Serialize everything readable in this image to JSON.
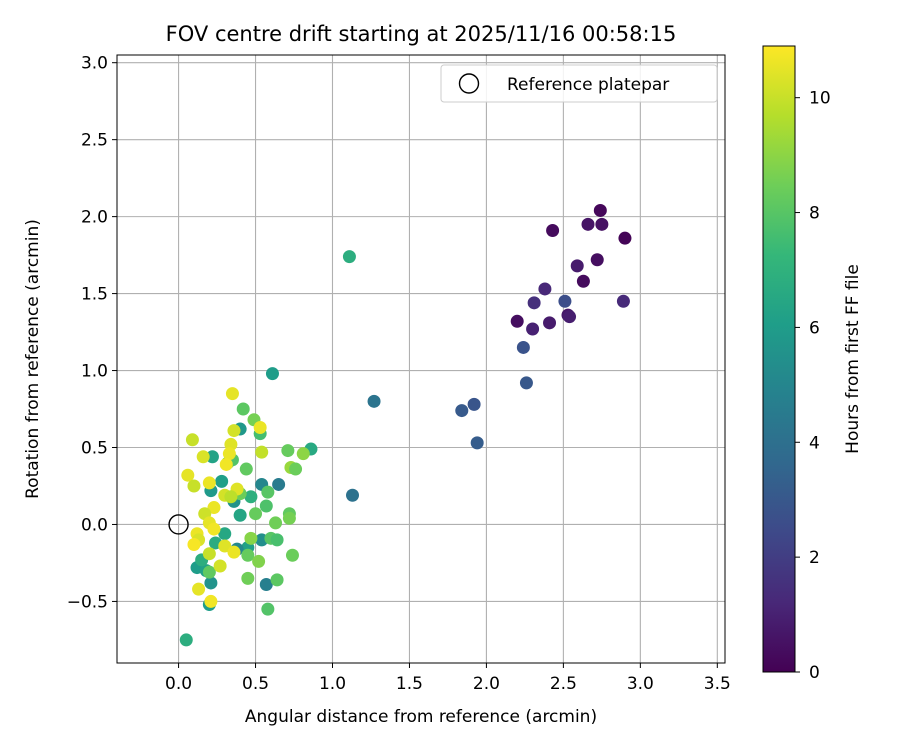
{
  "chart_data": {
    "type": "scatter",
    "title": "FOV centre drift starting at 2025/11/16 00:58:15",
    "xlabel": "Angular distance from reference (arcmin)",
    "ylabel": "Rotation from reference (arcmin)",
    "xlim": [
      -0.4,
      3.55
    ],
    "ylim": [
      -0.9,
      3.05
    ],
    "xticks": [
      0.0,
      0.5,
      1.0,
      1.5,
      2.0,
      2.5,
      3.0,
      3.5
    ],
    "xtick_labels": [
      "0.0",
      "0.5",
      "1.0",
      "1.5",
      "2.0",
      "2.5",
      "3.0",
      "3.5"
    ],
    "yticks": [
      -0.5,
      0.0,
      0.5,
      1.0,
      1.5,
      2.0,
      2.5,
      3.0
    ],
    "ytick_labels": [
      "−0.5",
      "0.0",
      "0.5",
      "1.0",
      "1.5",
      "2.0",
      "2.5",
      "3.0"
    ],
    "grid": true,
    "legend": {
      "position": "top-right",
      "label": "Reference platepar"
    },
    "reference_point": {
      "x": 0.0,
      "y": 0.0
    },
    "colorbar": {
      "label": "Hours from first FF file",
      "range": [
        0,
        10.9
      ],
      "ticks": [
        0,
        2,
        4,
        6,
        8,
        10
      ],
      "tick_labels": [
        "0",
        "2",
        "4",
        "6",
        "8",
        "10"
      ],
      "colormap": "viridis",
      "colors": [
        "#440154",
        "#482878",
        "#3e4989",
        "#31688e",
        "#26828e",
        "#1f9e89",
        "#35b779",
        "#6ece58",
        "#b5de2b",
        "#fde725"
      ]
    },
    "points": [
      {
        "x": 2.74,
        "y": 2.04,
        "t": 0.2
      },
      {
        "x": 2.43,
        "y": 1.91,
        "t": 0.3
      },
      {
        "x": 2.66,
        "y": 1.95,
        "t": 0.6
      },
      {
        "x": 2.75,
        "y": 1.95,
        "t": 0.5
      },
      {
        "x": 2.9,
        "y": 1.86,
        "t": 0.1
      },
      {
        "x": 2.72,
        "y": 1.72,
        "t": 0.4
      },
      {
        "x": 2.59,
        "y": 1.68,
        "t": 0.8
      },
      {
        "x": 2.63,
        "y": 1.58,
        "t": 0.3
      },
      {
        "x": 2.38,
        "y": 1.53,
        "t": 1.2
      },
      {
        "x": 2.31,
        "y": 1.44,
        "t": 1.5
      },
      {
        "x": 2.51,
        "y": 1.45,
        "t": 2.6
      },
      {
        "x": 2.89,
        "y": 1.45,
        "t": 1.3
      },
      {
        "x": 2.53,
        "y": 1.36,
        "t": 0.7
      },
      {
        "x": 2.54,
        "y": 1.35,
        "t": 0.9
      },
      {
        "x": 2.2,
        "y": 1.32,
        "t": 0.4
      },
      {
        "x": 2.3,
        "y": 1.27,
        "t": 1.0
      },
      {
        "x": 2.41,
        "y": 1.31,
        "t": 0.8
      },
      {
        "x": 2.24,
        "y": 1.15,
        "t": 2.8
      },
      {
        "x": 2.26,
        "y": 0.92,
        "t": 3.0
      },
      {
        "x": 1.84,
        "y": 0.74,
        "t": 3.1
      },
      {
        "x": 1.92,
        "y": 0.78,
        "t": 2.9
      },
      {
        "x": 1.94,
        "y": 0.53,
        "t": 3.2
      },
      {
        "x": 1.27,
        "y": 0.8,
        "t": 4.2
      },
      {
        "x": 1.13,
        "y": 0.19,
        "t": 4.1
      },
      {
        "x": 1.11,
        "y": 1.74,
        "t": 6.8
      },
      {
        "x": 0.61,
        "y": 0.98,
        "t": 6.0
      },
      {
        "x": 0.86,
        "y": 0.49,
        "t": 6.6
      },
      {
        "x": 0.05,
        "y": -0.75,
        "t": 6.8
      },
      {
        "x": 0.65,
        "y": 0.26,
        "t": 4.5
      },
      {
        "x": 0.54,
        "y": 0.26,
        "t": 5.0
      },
      {
        "x": 0.57,
        "y": -0.39,
        "t": 4.7
      },
      {
        "x": 0.4,
        "y": 0.62,
        "t": 5.8
      },
      {
        "x": 0.22,
        "y": 0.44,
        "t": 6.3
      },
      {
        "x": 0.28,
        "y": 0.28,
        "t": 6.1
      },
      {
        "x": 0.21,
        "y": 0.22,
        "t": 5.9
      },
      {
        "x": 0.36,
        "y": 0.15,
        "t": 5.6
      },
      {
        "x": 0.4,
        "y": 0.06,
        "t": 6.4
      },
      {
        "x": 0.47,
        "y": 0.18,
        "t": 6.9
      },
      {
        "x": 0.54,
        "y": -0.1,
        "t": 5.4
      },
      {
        "x": 0.45,
        "y": -0.15,
        "t": 6.2
      },
      {
        "x": 0.38,
        "y": -0.16,
        "t": 5.1
      },
      {
        "x": 0.3,
        "y": -0.06,
        "t": 6.5
      },
      {
        "x": 0.24,
        "y": -0.12,
        "t": 6.7
      },
      {
        "x": 0.12,
        "y": -0.28,
        "t": 6.0
      },
      {
        "x": 0.18,
        "y": -0.3,
        "t": 6.2
      },
      {
        "x": 0.21,
        "y": -0.38,
        "t": 5.6
      },
      {
        "x": 0.2,
        "y": -0.52,
        "t": 6.0
      },
      {
        "x": 0.15,
        "y": -0.23,
        "t": 6.8
      },
      {
        "x": 0.42,
        "y": 0.75,
        "t": 8.1
      },
      {
        "x": 0.49,
        "y": 0.68,
        "t": 8.6
      },
      {
        "x": 0.53,
        "y": 0.59,
        "t": 7.6
      },
      {
        "x": 0.71,
        "y": 0.48,
        "t": 8.3
      },
      {
        "x": 0.81,
        "y": 0.46,
        "t": 9.0
      },
      {
        "x": 0.73,
        "y": 0.37,
        "t": 9.2
      },
      {
        "x": 0.76,
        "y": 0.36,
        "t": 8.4
      },
      {
        "x": 0.44,
        "y": 0.36,
        "t": 8.2
      },
      {
        "x": 0.58,
        "y": 0.21,
        "t": 8.0
      },
      {
        "x": 0.57,
        "y": 0.12,
        "t": 7.8
      },
      {
        "x": 0.5,
        "y": 0.07,
        "t": 8.3
      },
      {
        "x": 0.63,
        "y": 0.01,
        "t": 8.5
      },
      {
        "x": 0.72,
        "y": 0.07,
        "t": 8.2
      },
      {
        "x": 0.72,
        "y": 0.04,
        "t": 8.6
      },
      {
        "x": 0.6,
        "y": -0.09,
        "t": 8.0
      },
      {
        "x": 0.64,
        "y": -0.1,
        "t": 7.7
      },
      {
        "x": 0.74,
        "y": -0.2,
        "t": 8.4
      },
      {
        "x": 0.47,
        "y": -0.09,
        "t": 8.9
      },
      {
        "x": 0.45,
        "y": -0.2,
        "t": 8.3
      },
      {
        "x": 0.52,
        "y": -0.24,
        "t": 8.8
      },
      {
        "x": 0.45,
        "y": -0.35,
        "t": 8.5
      },
      {
        "x": 0.64,
        "y": -0.36,
        "t": 8.1
      },
      {
        "x": 0.58,
        "y": -0.55,
        "t": 7.9
      },
      {
        "x": 0.32,
        "y": 0.4,
        "t": 8.7
      },
      {
        "x": 0.35,
        "y": 0.42,
        "t": 7.9
      },
      {
        "x": 0.4,
        "y": 0.2,
        "t": 8.4
      },
      {
        "x": 0.2,
        "y": -0.31,
        "t": 8.2
      },
      {
        "x": 0.35,
        "y": 0.85,
        "t": 10.5
      },
      {
        "x": 0.36,
        "y": 0.61,
        "t": 10.2
      },
      {
        "x": 0.53,
        "y": 0.63,
        "t": 10.6
      },
      {
        "x": 0.09,
        "y": 0.55,
        "t": 10.0
      },
      {
        "x": 0.34,
        "y": 0.52,
        "t": 10.4
      },
      {
        "x": 0.33,
        "y": 0.46,
        "t": 10.6
      },
      {
        "x": 0.54,
        "y": 0.47,
        "t": 9.9
      },
      {
        "x": 0.16,
        "y": 0.44,
        "t": 10.3
      },
      {
        "x": 0.31,
        "y": 0.39,
        "t": 10.7
      },
      {
        "x": 0.06,
        "y": 0.32,
        "t": 10.5
      },
      {
        "x": 0.1,
        "y": 0.25,
        "t": 10.0
      },
      {
        "x": 0.2,
        "y": 0.27,
        "t": 10.6
      },
      {
        "x": 0.38,
        "y": 0.23,
        "t": 10.4
      },
      {
        "x": 0.3,
        "y": 0.19,
        "t": 10.2
      },
      {
        "x": 0.34,
        "y": 0.18,
        "t": 9.8
      },
      {
        "x": 0.23,
        "y": 0.11,
        "t": 10.6
      },
      {
        "x": 0.17,
        "y": 0.07,
        "t": 10.1
      },
      {
        "x": 0.2,
        "y": 0.01,
        "t": 10.5
      },
      {
        "x": 0.23,
        "y": -0.03,
        "t": 10.7
      },
      {
        "x": 0.12,
        "y": -0.06,
        "t": 10.6
      },
      {
        "x": 0.13,
        "y": -0.1,
        "t": 10.3
      },
      {
        "x": 0.1,
        "y": -0.13,
        "t": 10.8
      },
      {
        "x": 0.3,
        "y": -0.14,
        "t": 10.4
      },
      {
        "x": 0.36,
        "y": -0.18,
        "t": 10.6
      },
      {
        "x": 0.2,
        "y": -0.19,
        "t": 10.0
      },
      {
        "x": 0.27,
        "y": -0.27,
        "t": 10.2
      },
      {
        "x": 0.13,
        "y": -0.42,
        "t": 10.5
      },
      {
        "x": 0.21,
        "y": -0.5,
        "t": 10.7
      }
    ]
  }
}
